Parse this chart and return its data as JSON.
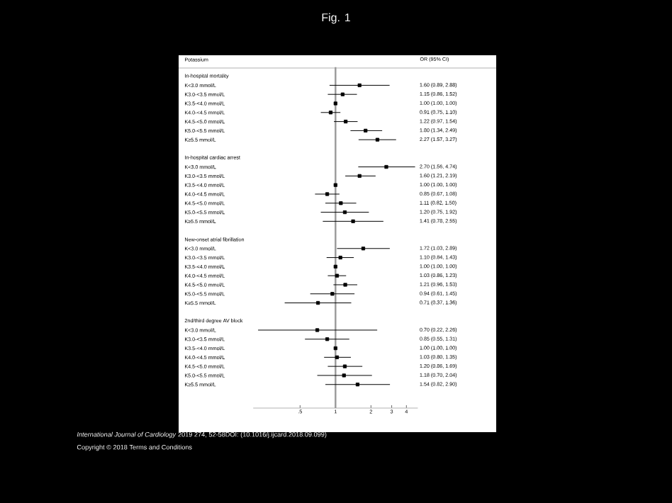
{
  "chart_data": {
    "type": "scatter",
    "orientation": "horizontal",
    "title": "Fig. 1",
    "annotations": [
      "Potassium",
      "OR (95% CI)",
      "*International Journal of Cardiology* 2019 274, 52-58DOI: (10.1016/j.ijcard.2018.09.099)",
      "Copyright © 2018 Terms and Conditions"
    ],
    "categories": [
      "In-hospital mortality",
      "K<3.0 mmol/L",
      "K3.0-<3.5 mmol/L",
      "K3.5-<4.0 mmol/L",
      "K4.0-<4.5 mmol/L",
      "K4.5-<5.0 mmol/L",
      "K5.0-<5.5 mmol/L",
      "K≥5.5 mmol/L",
      null,
      "In-hospital cardiac arrest",
      "K<3.0 mmol/L",
      "K3.0-<3.5 mmol/L",
      "K3.5-<4.0 mmol/L",
      "K4.0-<4.5 mmol/L",
      "K4.5-<5.0 mmol/L",
      "K5.0-<5.5 mmol/L",
      "K≥5.5 mmol/L",
      null,
      "New-onset atrial fibrillation",
      "K<3.0 mmol/L",
      "K3.0-<3.5 mmol/L",
      "K3.5-<4.0 mmol/L",
      "K4.0-<4.5 mmol/L",
      "K4.5-<5.0 mmol/L",
      "K5.0-<5.5 mmol/L",
      "K≥5.5 mmol/L",
      null,
      "2nd/third degree AV block",
      "K<3.0 mmol/L",
      "K3.0-<3.5 mmol/L",
      "K3.5-<4.0 mmol/L",
      "K4.0-<4.5 mmol/L",
      "K4.5-<5.0 mmol/L",
      "K5.0-<5.5 mmol/L",
      "K≥5.5 mmol/L"
    ],
    "values": [
      null,
      1.6,
      1.15,
      1.0,
      0.91,
      1.22,
      1.8,
      2.27,
      null,
      null,
      2.7,
      1.6,
      1.0,
      0.85,
      1.11,
      1.2,
      1.41,
      null,
      null,
      1.72,
      1.1,
      1.0,
      1.03,
      1.21,
      0.94,
      0.71,
      null,
      null,
      0.7,
      0.85,
      1.0,
      1.03,
      1.2,
      1.18,
      1.54
    ],
    "errors": [
      null,
      [
        0.89,
        2.88
      ],
      [
        0.86,
        1.52
      ],
      [
        1.0,
        1.0
      ],
      [
        0.75,
        1.1
      ],
      [
        0.97,
        1.54
      ],
      [
        1.34,
        2.49
      ],
      [
        1.57,
        3.27
      ],
      null,
      null,
      [
        1.56,
        4.74
      ],
      [
        1.21,
        2.19
      ],
      [
        1.0,
        1.0
      ],
      [
        0.67,
        1.08
      ],
      [
        0.82,
        1.5
      ],
      [
        0.75,
        1.92
      ],
      [
        0.78,
        2.55
      ],
      null,
      null,
      [
        1.03,
        2.89
      ],
      [
        0.84,
        1.43
      ],
      [
        1.0,
        1.0
      ],
      [
        0.86,
        1.23
      ],
      [
        0.96,
        1.53
      ],
      [
        0.61,
        1.45
      ],
      [
        0.37,
        1.36
      ],
      null,
      null,
      [
        0.22,
        2.26
      ],
      [
        0.55,
        1.31
      ],
      [
        1.0,
        1.0
      ],
      [
        0.8,
        1.35
      ],
      [
        0.86,
        1.69
      ],
      [
        0.7,
        2.04
      ],
      [
        0.82,
        2.9
      ]
    ],
    "value_labels": [
      null,
      "1.60 (0.89, 2.88)",
      "1.15 (0.86, 1.52)",
      "1.00 (1.00, 1.00)",
      "0.91 (0.75, 1.10)",
      "1.22 (0.97, 1.54)",
      "1.80 (1.34, 2.49)",
      "2.27 (1.57, 3.27)",
      null,
      null,
      "2.70 (1.56, 4.74)",
      "1.60 (1.21, 2.19)",
      "1.00 (1.00, 1.00)",
      "0.85 (0.67, 1.08)",
      "1.11 (0.82, 1.50)",
      "1.20 (0.75, 1.92)",
      "1.41 (0.78, 2.55)",
      null,
      null,
      "1.72 (1.03, 2.89)",
      "1.10 (0.84, 1.43)",
      "1.00 (1.00, 1.00)",
      "1.03 (0.86, 1.23)",
      "1.21 (0.96, 1.53)",
      "0.94 (0.61, 1.45)",
      "0.71 (0.37, 1.36)",
      null,
      null,
      "0.70 (0.22, 2.26)",
      "0.85 (0.55, 1.31)",
      "1.00 (1.00, 1.00)",
      "1.03 (0.80, 1.35)",
      "1.20 (0.86, 1.69)",
      "1.18 (0.70, 2.04)",
      "1.54 (0.82, 2.90)"
    ],
    "color": "#000000",
    "marker": "square",
    "log": "x",
    "xlim": [
      0.2,
      5
    ],
    "xticks": [
      {
        "value": 0.5,
        "label": ".5"
      },
      1,
      2,
      3,
      4
    ],
    "ref_lines": [
      {
        "axis": "x",
        "value": 1,
        "color": "#999999"
      }
    ]
  }
}
